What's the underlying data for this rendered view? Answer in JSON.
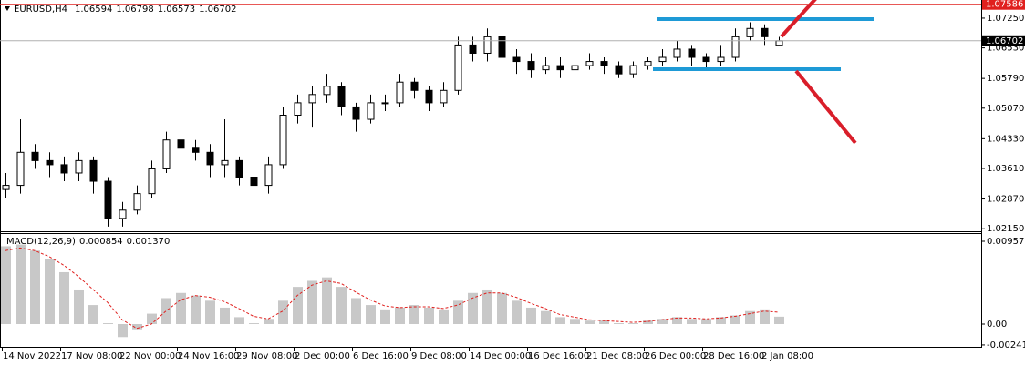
{
  "chart_data": [
    {
      "type": "candlestick",
      "title": "EURUSD,H4",
      "categories": [
        "14 Nov 2022",
        null,
        null,
        null,
        "17 Nov 08:00",
        null,
        null,
        null,
        "22 Nov 00:00",
        null,
        null,
        null,
        "24 Nov 16:00",
        null,
        null,
        null,
        "29 Nov 08:00",
        null,
        null,
        null,
        "2 Dec 00:00",
        null,
        null,
        null,
        "6 Dec 16:00",
        null,
        null,
        null,
        "9 Dec 08:00",
        null,
        null,
        null,
        "14 Dec 00:00",
        null,
        null,
        null,
        "16 Dec 16:00",
        null,
        null,
        null,
        "21 Dec 08:00",
        null,
        null,
        null,
        "26 Dec 00:00",
        null,
        null,
        null,
        "28 Dec 16:00",
        null,
        null,
        null,
        "2 Jan 08:00",
        null
      ],
      "open": [
        1.031,
        1.032,
        1.04,
        1.038,
        1.037,
        1.035,
        1.038,
        1.033,
        1.024,
        1.026,
        1.03,
        1.036,
        1.043,
        1.041,
        1.04,
        1.037,
        1.038,
        1.034,
        1.032,
        1.037,
        1.049,
        1.052,
        1.054,
        1.056,
        1.051,
        1.048,
        1.052,
        1.052,
        1.057,
        1.055,
        1.052,
        1.055,
        1.066,
        1.064,
        1.068,
        1.063,
        1.062,
        1.06,
        1.061,
        1.06,
        1.061,
        1.062,
        1.061,
        1.059,
        1.061,
        1.062,
        1.063,
        1.065,
        1.063,
        1.062,
        1.063,
        1.068,
        1.07,
        1.06594
      ],
      "high": [
        1.035,
        1.048,
        1.042,
        1.04,
        1.039,
        1.04,
        1.039,
        1.034,
        1.028,
        1.032,
        1.038,
        1.045,
        1.044,
        1.043,
        1.042,
        1.048,
        1.039,
        1.036,
        1.039,
        1.051,
        1.054,
        1.056,
        1.059,
        1.057,
        1.052,
        1.054,
        1.054,
        1.059,
        1.058,
        1.056,
        1.057,
        1.068,
        1.068,
        1.07,
        1.073,
        1.065,
        1.064,
        1.063,
        1.063,
        1.063,
        1.064,
        1.063,
        1.062,
        1.062,
        1.063,
        1.065,
        1.067,
        1.066,
        1.064,
        1.066,
        1.07,
        1.0715,
        1.071,
        1.06798
      ],
      "low": [
        1.029,
        1.03,
        1.036,
        1.034,
        1.033,
        1.033,
        1.03,
        1.022,
        1.022,
        1.025,
        1.029,
        1.035,
        1.039,
        1.038,
        1.034,
        1.034,
        1.032,
        1.029,
        1.03,
        1.036,
        1.047,
        1.046,
        1.052,
        1.049,
        1.045,
        1.047,
        1.05,
        1.051,
        1.053,
        1.05,
        1.051,
        1.054,
        1.062,
        1.062,
        1.061,
        1.059,
        1.058,
        1.059,
        1.058,
        1.059,
        1.06,
        1.059,
        1.058,
        1.058,
        1.06,
        1.061,
        1.062,
        1.061,
        1.06,
        1.061,
        1.062,
        1.067,
        1.066,
        1.06573
      ],
      "close": [
        1.032,
        1.04,
        1.038,
        1.037,
        1.035,
        1.038,
        1.033,
        1.024,
        1.026,
        1.03,
        1.036,
        1.043,
        1.041,
        1.04,
        1.037,
        1.038,
        1.034,
        1.032,
        1.037,
        1.049,
        1.052,
        1.054,
        1.056,
        1.051,
        1.048,
        1.052,
        1.052,
        1.057,
        1.055,
        1.052,
        1.055,
        1.066,
        1.064,
        1.068,
        1.063,
        1.062,
        1.06,
        1.061,
        1.06,
        1.061,
        1.062,
        1.061,
        1.059,
        1.061,
        1.062,
        1.063,
        1.065,
        1.063,
        1.062,
        1.063,
        1.068,
        1.07,
        1.068,
        1.06702
      ],
      "ylim": [
        1.0211,
        1.0769
      ],
      "yticks": [
        {
          "value": 1.0725,
          "label": "1.07250"
        },
        {
          "value": 1.0653,
          "label": "1.06530"
        },
        {
          "value": 1.0579,
          "label": "1.05790"
        },
        {
          "value": 1.0507,
          "label": "1.05070"
        },
        {
          "value": 1.0433,
          "label": "1.04330"
        },
        {
          "value": 1.0361,
          "label": "1.03610"
        },
        {
          "value": 1.0287,
          "label": "1.02870"
        },
        {
          "value": 1.0215,
          "label": "1.02150"
        }
      ],
      "price_lines": [
        {
          "value": 1.07586,
          "color": "#e0201e"
        },
        {
          "value": 1.06702,
          "color": "#000000"
        }
      ],
      "bull_color": "#ffffff",
      "bear_color": "#000000"
    },
    {
      "type": "macd",
      "title": "MACD(12,26,9)",
      "histogram": {
        "color": "#c8c8c8",
        "values": [
          0.009,
          0.0092,
          0.0085,
          0.0075,
          0.006,
          0.004,
          0.0022,
          0.0001,
          -0.0015,
          -0.0006,
          0.0012,
          0.003,
          0.0036,
          0.0033,
          0.0027,
          0.0019,
          0.0008,
          0.0001,
          0.0006,
          0.0027,
          0.0043,
          0.005,
          0.0054,
          0.0043,
          0.003,
          0.0022,
          0.0017,
          0.0019,
          0.0022,
          0.0019,
          0.0017,
          0.0027,
          0.0036,
          0.004,
          0.0036,
          0.0027,
          0.0019,
          0.0015,
          0.0008,
          0.0006,
          0.0004,
          0.0004,
          0.0001,
          0.0001,
          0.0004,
          0.0006,
          0.0008,
          0.0006,
          0.0006,
          0.0008,
          0.001,
          0.0015,
          0.0017,
          0.000854
        ]
      },
      "signal": {
        "color": "#e0201e",
        "values": [
          0.0085,
          0.0088,
          0.0085,
          0.0078,
          0.0068,
          0.0055,
          0.004,
          0.0025,
          0.0005,
          -0.0005,
          0,
          0.0015,
          0.0028,
          0.0033,
          0.0031,
          0.0026,
          0.0018,
          0.0009,
          0.0006,
          0.0015,
          0.0033,
          0.0045,
          0.005,
          0.0047,
          0.0037,
          0.0028,
          0.0021,
          0.0019,
          0.002,
          0.002,
          0.0018,
          0.0022,
          0.003,
          0.0036,
          0.0036,
          0.0031,
          0.0024,
          0.0018,
          0.0011,
          0.0008,
          0.0005,
          0.0004,
          0.0003,
          0.0002,
          0.0003,
          0.0005,
          0.0007,
          0.0007,
          0.0006,
          0.0007,
          0.0009,
          0.0012,
          0.0015,
          0.00137
        ],
        "last_value_label": "0.001370"
      },
      "ylim": [
        -0.00263,
        0.01052
      ],
      "yticks": [
        0.009573,
        {
          "value": 0,
          "label": "0.00"
        },
        -0.002412
      ]
    }
  ]
}
